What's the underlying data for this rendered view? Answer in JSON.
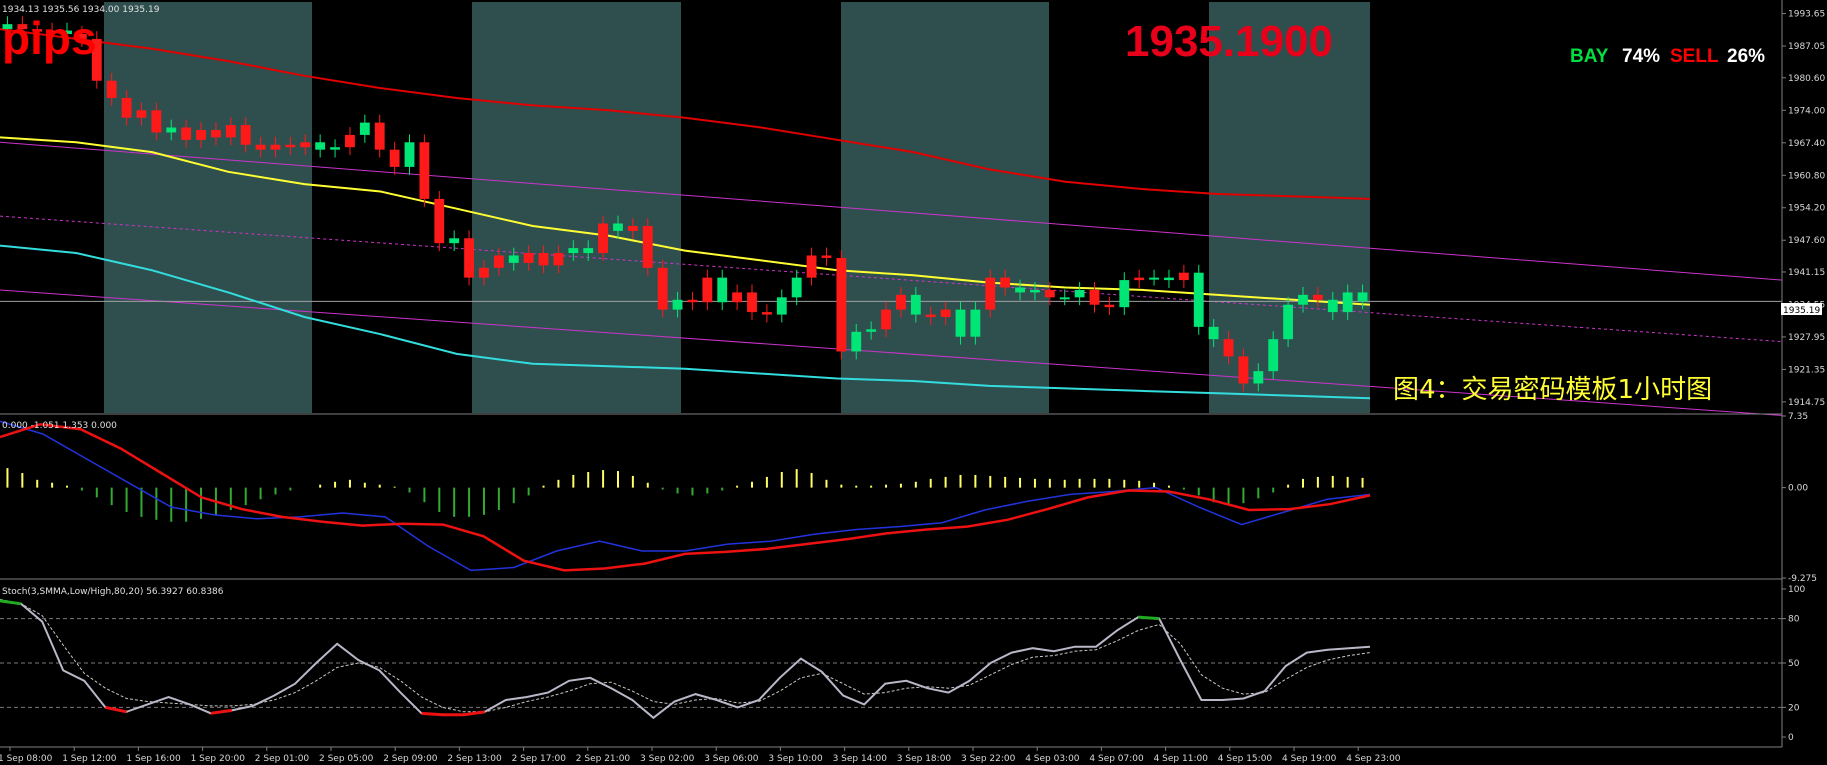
{
  "chart_data": [
    {
      "type": "candlestick",
      "panel": "price",
      "header": "1934.13 1935.56 1934.00 1935.19",
      "corner_text": "pips",
      "current_price_label": "1935.1900",
      "sentiment": {
        "buy_label": "BAY",
        "buy_value": "74%",
        "sell_label": "SELL",
        "sell_value": "26%"
      },
      "annotation": "图4：交易密码模板1小时图",
      "last_price": 1935.19,
      "last_price_tag": "1935.19",
      "ylim": [
        1912.5,
        1996.0
      ],
      "y_ticks": [
        "1993.65",
        "1987.05",
        "1980.60",
        "1974.00",
        "1967.40",
        "1960.80",
        "1954.20",
        "1947.60",
        "1941.15",
        "1934.55",
        "1927.95",
        "1921.35",
        "1914.75"
      ],
      "x_ticks": [
        "1 Sep 08:00",
        "1 Sep 12:00",
        "1 Sep 16:00",
        "1 Sep 20:00",
        "2 Sep 01:00",
        "2 Sep 05:00",
        "2 Sep 09:00",
        "2 Sep 13:00",
        "2 Sep 17:00",
        "2 Sep 21:00",
        "3 Sep 02:00",
        "3 Sep 06:00",
        "3 Sep 10:00",
        "3 Sep 14:00",
        "3 Sep 18:00",
        "3 Sep 22:00",
        "4 Sep 03:00",
        "4 Sep 07:00",
        "4 Sep 11:00",
        "4 Sep 15:00",
        "4 Sep 19:00",
        "4 Sep 23:00"
      ],
      "closes": [
        1991.5,
        1990.5,
        1990.0,
        1990.2,
        1989.5,
        1988.5,
        1980.0,
        1976.5,
        1972.5,
        1974.0,
        1969.5,
        1970.5,
        1968.0,
        1970.0,
        1968.5,
        1971.0,
        1967.0,
        1966.0,
        1967.0,
        1966.5,
        1967.5,
        1966.0,
        1966.5,
        1969.0,
        1971.5,
        1966.0,
        1962.5,
        1967.5,
        1956.0,
        1947.0,
        1948.0,
        1940.0,
        1942.0,
        1944.5,
        1943.0,
        1945.0,
        1942.5,
        1945.0,
        1946.0,
        1945.0,
        1951.0,
        1949.5,
        1950.5,
        1942.0,
        1933.5,
        1935.5,
        1935.0,
        1940.0,
        1935.0,
        1937.0,
        1933.0,
        1932.5,
        1936.0,
        1940.0,
        1944.5,
        1944.0,
        1925.0,
        1929.0,
        1929.5,
        1933.5,
        1936.5,
        1932.5,
        1932.0,
        1933.5,
        1928.0,
        1933.5,
        1940.0,
        1938.0,
        1937.0,
        1937.5,
        1936.0,
        1936.0,
        1937.5,
        1934.5,
        1934.0,
        1939.5,
        1940.0,
        1940.0,
        1939.5,
        1941.0,
        1930.0,
        1927.5,
        1924.0,
        1918.5,
        1921.0,
        1927.5,
        1934.5,
        1936.5,
        1935.5,
        1933.0,
        1937.0,
        1935.19
      ],
      "bull_bars": [
        0,
        4,
        11,
        21,
        22,
        24,
        27,
        30,
        34,
        38,
        39,
        41,
        45,
        48,
        52,
        53,
        57,
        58,
        61,
        64,
        65,
        68,
        69,
        71,
        72,
        75,
        77,
        78,
        80,
        81,
        84,
        85,
        86,
        87,
        89,
        90,
        91
      ],
      "bands": {
        "ma_upper_red": [
          1990.5,
          1988.5,
          1986.5,
          1984.0,
          1981.0,
          1978.5,
          1976.5,
          1975.0,
          1974.0,
          1972.5,
          1970.5,
          1968.0,
          1965.5,
          1962.0,
          1959.5,
          1958.0,
          1957.0,
          1956.5,
          1956.0
        ],
        "ma_middle_yellow": [
          1968.5,
          1967.5,
          1965.5,
          1961.5,
          1959.0,
          1957.5,
          1954.0,
          1950.5,
          1948.5,
          1945.5,
          1943.5,
          1941.5,
          1940.5,
          1939.0,
          1938.0,
          1937.5,
          1936.5,
          1935.5,
          1934.5
        ],
        "ma_lower_cyan": [
          1946.5,
          1945.0,
          1941.5,
          1937.0,
          1932.0,
          1928.5,
          1924.5,
          1922.5,
          1922.0,
          1921.5,
          1920.5,
          1919.5,
          1919.0,
          1918.0,
          1917.5,
          1917.0,
          1916.5,
          1916.0,
          1915.5
        ]
      }
    },
    {
      "type": "macd",
      "panel": "oscillator",
      "header": "0.000 -1.051 1.353 0.000",
      "ylim": [
        -9.275,
        7.35
      ],
      "y_ticks": [
        "7.35",
        "0.00",
        "-9.275"
      ],
      "histogram": [
        2.0,
        1.5,
        0.8,
        0.5,
        0.2,
        -0.3,
        -1.0,
        -1.8,
        -2.5,
        -3.0,
        -3.3,
        -3.5,
        -3.5,
        -3.2,
        -2.8,
        -2.3,
        -1.8,
        -1.2,
        -0.7,
        -0.3,
        0.0,
        0.3,
        0.6,
        0.8,
        0.5,
        0.3,
        0.1,
        -0.5,
        -1.5,
        -2.5,
        -3.0,
        -3.0,
        -2.8,
        -2.3,
        -1.6,
        -0.8,
        0.2,
        0.8,
        1.3,
        1.6,
        1.8,
        1.7,
        1.2,
        0.5,
        -0.2,
        -0.6,
        -0.8,
        -0.6,
        -0.3,
        0.2,
        0.6,
        1.1,
        1.6,
        1.9,
        1.5,
        0.8,
        0.3,
        0.2,
        0.2,
        0.3,
        0.4,
        0.6,
        0.9,
        1.1,
        1.3,
        1.3,
        1.2,
        1.1,
        1.0,
        0.9,
        0.9,
        0.8,
        0.9,
        0.9,
        0.9,
        0.8,
        0.7,
        0.5,
        0.2,
        -0.2,
        -0.8,
        -1.5,
        -1.8,
        -1.6,
        -1.1,
        -0.5,
        0.3,
        0.9,
        1.1,
        1.2,
        1.1,
        1.0
      ],
      "signal_red": [
        5.2,
        6.5,
        6.0,
        4.0,
        1.5,
        -1.0,
        -2.2,
        -3.0,
        -3.5,
        -3.9,
        -3.7,
        -3.8,
        -5.0,
        -7.5,
        -8.5,
        -8.3,
        -7.8,
        -6.8,
        -6.6,
        -6.3,
        -5.8,
        -5.3,
        -4.7,
        -4.3,
        -4.0,
        -3.3,
        -2.2,
        -1.0,
        -0.3,
        -0.4,
        -1.2,
        -2.3,
        -2.2,
        -1.7,
        -0.8
      ],
      "main_blue": [
        6.8,
        5.5,
        3.0,
        0.5,
        -2.0,
        -2.8,
        -3.2,
        -3.0,
        -2.6,
        -3.0,
        -6.0,
        -8.5,
        -8.2,
        -6.5,
        -5.5,
        -6.5,
        -6.5,
        -5.8,
        -5.5,
        -4.8,
        -4.3,
        -4.0,
        -3.6,
        -2.3,
        -1.4,
        -0.7,
        -0.4,
        0.0,
        -2.0,
        -3.8,
        -2.5,
        -1.2,
        -0.7
      ]
    },
    {
      "type": "line",
      "panel": "stochastic",
      "header": "Stoch(3,SMMA,Low/High,80,20) 56.3927 60.8386",
      "ylim": [
        0,
        100
      ],
      "y_ticks": [
        "100",
        "80",
        "50",
        "20",
        "0"
      ],
      "levels": [
        80,
        50,
        20
      ],
      "main": [
        92,
        90,
        78,
        45,
        38,
        20,
        17,
        22,
        27,
        22,
        16,
        18,
        21,
        28,
        36,
        50,
        63,
        52,
        45,
        30,
        16,
        15,
        15,
        17,
        25,
        27,
        30,
        38,
        40,
        33,
        25,
        13,
        24,
        29,
        25,
        20,
        25,
        40,
        53,
        44,
        28,
        22,
        36,
        38,
        33,
        30,
        38,
        50,
        57,
        60,
        58,
        61,
        61,
        72,
        81,
        80,
        52,
        25,
        25,
        26,
        31,
        48,
        57,
        59,
        60,
        61
      ],
      "signal": [
        93,
        90,
        82,
        62,
        43,
        33,
        26,
        24,
        23,
        22,
        21,
        21,
        22,
        25,
        30,
        38,
        47,
        50,
        47,
        38,
        27,
        20,
        17,
        17,
        20,
        24,
        27,
        31,
        36,
        37,
        31,
        24,
        22,
        25,
        26,
        23,
        24,
        31,
        40,
        43,
        36,
        29,
        30,
        33,
        34,
        33,
        35,
        42,
        49,
        54,
        55,
        58,
        59,
        65,
        72,
        76,
        63,
        42,
        33,
        29,
        30,
        39,
        47,
        52,
        55,
        57
      ]
    }
  ]
}
